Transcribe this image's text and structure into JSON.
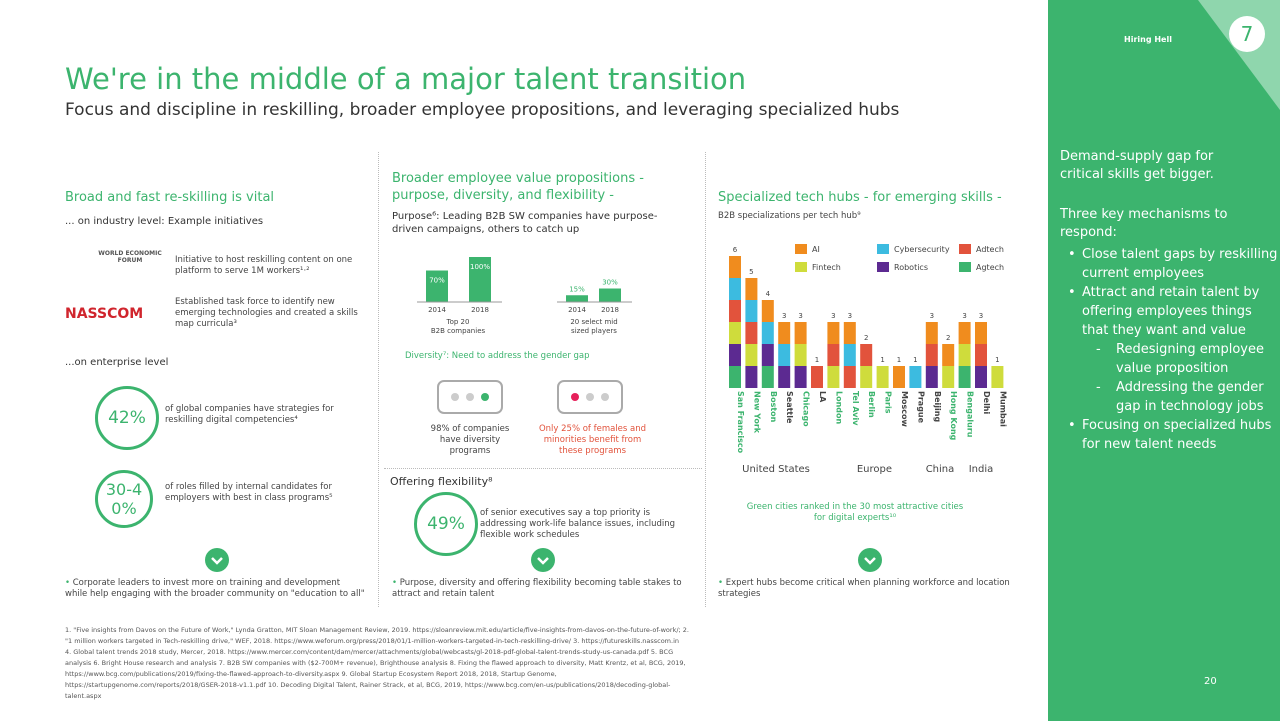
{
  "header": {
    "title": "We're in the middle of a major talent transition",
    "subtitle": "Focus and discipline in reskilling, broader employee propositions, and leveraging specialized hubs"
  },
  "columns": [
    {
      "heading": "Broad and fast re-skilling is vital",
      "sub": "... on industry level: Example initiatives",
      "items": [
        {
          "logo": "WORLD ECONOMIC FORUM",
          "text": "Initiative to host reskilling content on one platform to serve 1M workers¹·²"
        },
        {
          "logo": "NASSCOM",
          "text": "Established task force to identify new emerging technologies and created a skills map curricula³"
        }
      ],
      "enterprise": "...on enterprise level",
      "stats": [
        {
          "figure": "42%",
          "text": "of global companies have strategies for reskilling digital competencies⁴"
        },
        {
          "figure": "30-40%",
          "text": "of roles filled by internal candidates for employers with best in class programs⁵"
        }
      ],
      "conclusion": "Corporate leaders to invest more on training and development while help engaging with the broader community on \"education to all\""
    },
    {
      "heading": "Broader employee value propositions - purpose, diversity, and flexibility -",
      "purpose": "Purpose⁶: Leading B2B SW companies have purpose-driven campaigns, others to catch up",
      "diversity": "Diversity⁷: Need to address the gender gap",
      "diversity_left": "98% of companies have diversity programs",
      "diversity_right": "Only 25% of females and minorities benefit from these programs",
      "flex_heading": "Offering flexibility⁸",
      "flex_figure": "49%",
      "flex_text": "of senior executives say a top priority is addressing work-life balance issues, including flexible work schedules",
      "conclusion": "Purpose, diversity and offering flexibility becoming table stakes to attract and retain talent"
    },
    {
      "heading": "Specialized tech hubs - for emerging skills -",
      "sub": "B2B specializations per tech hub⁹",
      "note": "Green cities ranked in the 30 most attractive cities for digital experts¹⁰",
      "conclusion": "Expert hubs become critical when planning workforce and location strategies"
    }
  ],
  "chart_data": [
    {
      "type": "bar",
      "categories": [
        "2014",
        "2018",
        "2014",
        "2018"
      ],
      "groups": [
        "Top 20 B2B companies",
        "20 select mid sized players"
      ],
      "values": [
        70,
        100,
        15,
        30
      ],
      "value_labels": [
        "70%",
        "100%",
        "15%",
        "30%"
      ],
      "color": "#3cb46e"
    },
    {
      "type": "stacked-bar",
      "categories": [
        "San Francisco",
        "New York",
        "Boston",
        "Seattle",
        "Chicago",
        "LA",
        "London",
        "Tel Aviv",
        "Berlin",
        "Paris",
        "Moscow",
        "Prague",
        "Beijing",
        "Hong Kong",
        "Bengaluru",
        "Delhi",
        "Mumbai"
      ],
      "category_colors": [
        "#3cb46e",
        "#3cb46e",
        "#3cb46e",
        "#444444",
        "#3cb46e",
        "#444444",
        "#3cb46e",
        "#3cb46e",
        "#3cb46e",
        "#3cb46e",
        "#444444",
        "#444444",
        "#444444",
        "#3cb46e",
        "#3cb46e",
        "#444444",
        "#444444"
      ],
      "regions": [
        "United States",
        "United States",
        "United States",
        "United States",
        "United States",
        "United States",
        "Europe",
        "Europe",
        "Europe",
        "Europe",
        "Europe",
        "Europe",
        "China",
        "China",
        "India",
        "India",
        "India"
      ],
      "totals": [
        6,
        5,
        4,
        3,
        3,
        1,
        3,
        3,
        2,
        1,
        1,
        1,
        3,
        2,
        3,
        3,
        1
      ],
      "series": [
        {
          "name": "AI",
          "color": "#f08c1e",
          "values": [
            1,
            1,
            1,
            1,
            1,
            0,
            1,
            1,
            0,
            0,
            1,
            0,
            1,
            1,
            1,
            1,
            0
          ]
        },
        {
          "name": "Cybersecurity",
          "color": "#3cbbe0",
          "values": [
            1,
            1,
            1,
            1,
            0,
            0,
            0,
            1,
            0,
            0,
            0,
            1,
            0,
            0,
            0,
            0,
            0
          ]
        },
        {
          "name": "Adtech",
          "color": "#e2533c",
          "values": [
            1,
            1,
            0,
            0,
            0,
            1,
            1,
            1,
            1,
            0,
            0,
            0,
            1,
            0,
            0,
            1,
            0
          ]
        },
        {
          "name": "Fintech",
          "color": "#cfdc3c",
          "values": [
            1,
            1,
            0,
            0,
            1,
            0,
            1,
            0,
            1,
            1,
            0,
            0,
            0,
            1,
            1,
            0,
            1
          ]
        },
        {
          "name": "Robotics",
          "color": "#5c2a91",
          "values": [
            1,
            1,
            1,
            1,
            1,
            0,
            0,
            0,
            0,
            0,
            0,
            0,
            1,
            0,
            0,
            1,
            0
          ]
        },
        {
          "name": "Agtech",
          "color": "#3cb46e",
          "values": [
            1,
            0,
            1,
            0,
            0,
            0,
            0,
            0,
            0,
            0,
            0,
            0,
            0,
            0,
            1,
            0,
            0
          ]
        }
      ]
    }
  ],
  "sidebar": {
    "tag": "Hiring Hell",
    "badge": "7",
    "heading": "Demand-supply gap for critical skills get bigger.",
    "intro": "Three key mechanisms to respond:",
    "bullets": [
      {
        "text": "Close talent gaps by reskilling current employees"
      },
      {
        "text": "Attract and retain talent by offering employees things that they want and value",
        "sub": [
          "Redesigning employee value proposition",
          "Addressing the gender gap in technology jobs"
        ]
      },
      {
        "text": "Focusing on specialized hubs for new talent needs"
      }
    ],
    "page_number": "20"
  },
  "footnotes": [
    "1. \"Five insights from Davos on the Future of Work,\" Lynda Gratton, MIT Sloan Management Review, 2019. https://sloanreview.mit.edu/article/five-insights-from-davos-on-the-future-of-work/; 2.",
    "\"1 million workers targeted in Tech-reskilling drive,\" WEF, 2018. https://www.weforum.org/press/2018/01/1-million-workers-targeted-in-tech-reskilling-drive/ 3. https://futureskills.nasscom.in",
    "4. Global talent trends 2018 study, Mercer, 2018. https://www.mercer.com/content/dam/mercer/attachments/global/webcasts/gl-2018-pdf-global-talent-trends-study-us-canada.pdf 5. BCG",
    "analysis 6. Bright House research and analysis 7. B2B SW companies with ($2-700M+ revenue), Brighthouse analysis 8. Fixing the flawed approach to diversity, Matt Krentz, et al, BCG, 2019,",
    "https://www.bcg.com/publications/2019/fixing-the-flawed-approach-to-diversity.aspx 9. Global Startup Ecosystem Report 2018, 2018, Startup Genome,",
    "https://startupgenome.com/reports/2018/GSER-2018-v1.1.pdf 10. Decoding Digital Talent, Rainer Strack, et al, BCG, 2019, https://www.bcg.com/en-us/publications/2018/decoding-global-",
    "talent.aspx"
  ]
}
